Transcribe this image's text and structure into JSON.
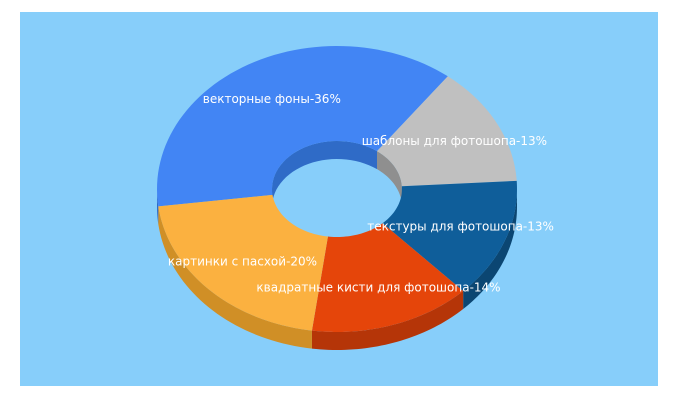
{
  "background_color": "#87cefa",
  "chart_data": {
    "type": "pie",
    "donut": true,
    "three_d": true,
    "slices": [
      {
        "label": "векторные фоны-36%",
        "name": "векторные фоны",
        "value": 36,
        "color": "#4285f4",
        "side_color": "#2f6bc7"
      },
      {
        "label": "шаблоны для фотошопа-13%",
        "name": "шаблоны для фотошопа",
        "value": 13,
        "color": "#c0c0c0",
        "side_color": "#8f8f8f"
      },
      {
        "label": "текстуры для фотошопа-13%",
        "name": "текстуры для фотошопа",
        "value": 13,
        "color": "#0f5e9a",
        "side_color": "#0b4672"
      },
      {
        "label": "квадратные кисти для фотошопа-14%",
        "name": "квадратные кисти для фотошопа",
        "value": 14,
        "color": "#e5450a",
        "side_color": "#b53508"
      },
      {
        "label": "картинки с пасхой-20%",
        "name": "картинки с пасхой",
        "value": 20,
        "color": "#fbb140",
        "side_color": "#d08f26"
      }
    ]
  }
}
